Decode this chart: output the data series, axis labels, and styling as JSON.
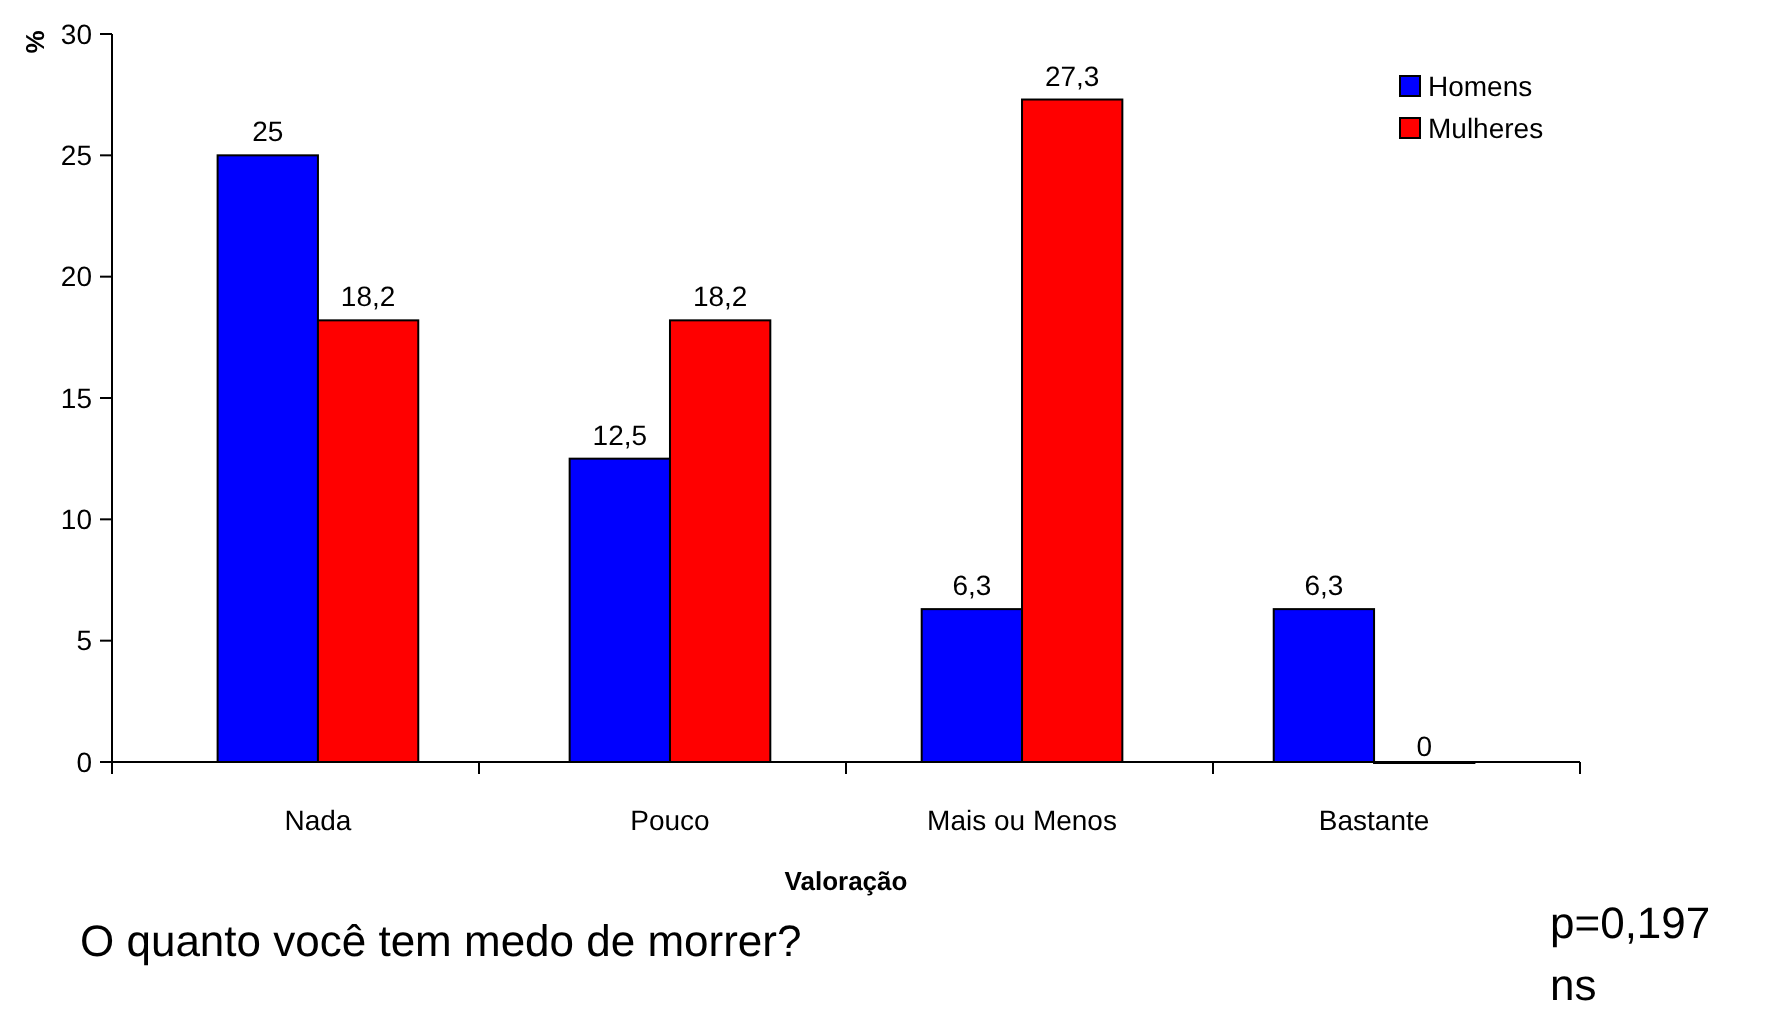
{
  "chart_data": {
    "type": "bar",
    "xlabel": "Valoração",
    "ylabel": "%",
    "categories": [
      "Nada",
      "Pouco",
      "Mais ou Menos",
      "Bastante"
    ],
    "series": [
      {
        "name": "Homens",
        "color": "#0000ff",
        "values": [
          25,
          12.5,
          6.3,
          6.3
        ],
        "value_labels": [
          "25",
          "12,5",
          "6,3",
          "6,3"
        ]
      },
      {
        "name": "Mulheres",
        "color": "#ff0000",
        "values": [
          18.2,
          18.2,
          27.3,
          0
        ],
        "value_labels": [
          "18,2",
          "18,2",
          "27,3",
          "0"
        ]
      }
    ],
    "ylim": [
      0,
      30
    ],
    "yticks": [
      0,
      5,
      10,
      15,
      20,
      25,
      30
    ],
    "grid": false,
    "legend": "top right",
    "annotations": [
      "O quanto você tem medo de morrer?",
      "p=0,197",
      "ns"
    ]
  }
}
